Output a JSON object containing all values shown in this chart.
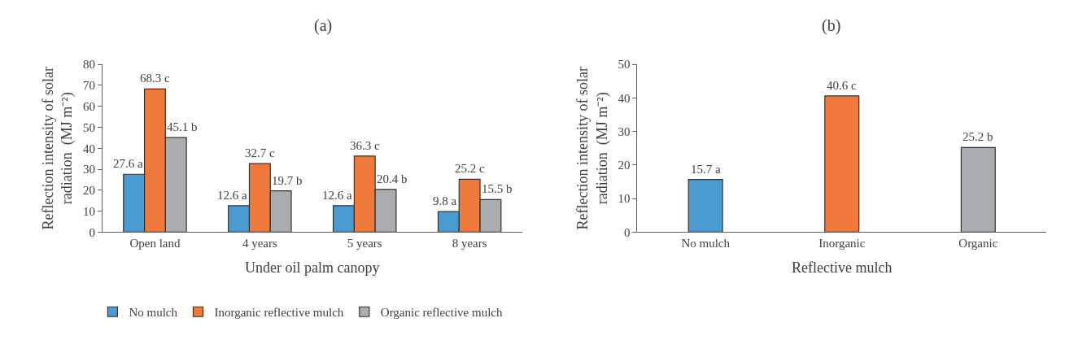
{
  "chart_data": [
    {
      "type": "bar",
      "title": "(a)",
      "xlabel": "Under oil palm canopy",
      "ylabel": "Reflection intensity of solar radiation  (MJ m⁻²)",
      "categories": [
        "Open land",
        "4 years",
        "5 years",
        "8 years"
      ],
      "series": [
        {
          "name": "No mulch",
          "color": "#4a9bd0",
          "values": [
            27.6,
            12.6,
            12.6,
            9.8
          ],
          "value_labels": [
            "27.6 a",
            "12.6 a",
            "12.6 a",
            "9.8 a"
          ]
        },
        {
          "name": "Inorganic reflective mulch",
          "color": "#f07a3c",
          "values": [
            68.3,
            32.7,
            36.3,
            25.2
          ],
          "value_labels": [
            "68.3 c",
            "32.7 c",
            "36.3 c",
            "25.2 c"
          ]
        },
        {
          "name": "Organic reflective mulch",
          "color": "#a9adb0",
          "values": [
            45.1,
            19.7,
            20.4,
            15.5
          ],
          "value_labels": [
            "45.1 b",
            "19.7 b",
            "20.4 b",
            "15.5 b"
          ]
        }
      ],
      "ylim": [
        0,
        80
      ],
      "yticks": [
        0,
        10,
        20,
        30,
        40,
        50,
        60,
        70,
        80
      ],
      "legend": "bottom"
    },
    {
      "type": "bar",
      "title": "(b)",
      "xlabel": "Reflective mulch",
      "ylabel": "Reflection intensity of solar radiation  (MJ m⁻²)",
      "categories": [
        "No mulch",
        "Inorganic",
        "Organic"
      ],
      "values": [
        15.7,
        40.6,
        25.2
      ],
      "colors": [
        "#4a9bd0",
        "#f07a3c",
        "#a9adb0"
      ],
      "value_labels": [
        "15.7 a",
        "40.6 c",
        "25.2 b"
      ],
      "ylim": [
        0,
        50
      ],
      "yticks": [
        0,
        10,
        20,
        30,
        40,
        50
      ]
    }
  ]
}
